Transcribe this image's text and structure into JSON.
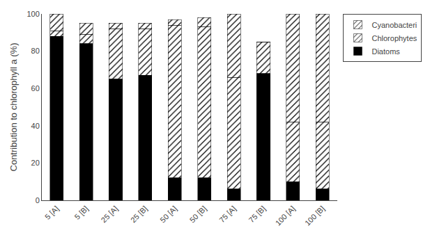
{
  "chart_data": {
    "type": "bar",
    "categories": [
      "5 [A]",
      "5 [B]",
      "25 [A]",
      "25 [B]",
      "50 [A]",
      "50 [B]",
      "75 [A]",
      "75 [B]",
      "100 [A]",
      "100 [B]"
    ],
    "series": [
      {
        "name": "Diatoms",
        "color": "#000000",
        "values": [
          88,
          84,
          65,
          67,
          12,
          12,
          6,
          68,
          10,
          6
        ]
      },
      {
        "name": "Chlorophytes",
        "color": "#d8d8d8",
        "values": [
          3,
          5,
          27,
          25,
          82,
          81,
          60,
          17,
          32,
          36
        ]
      },
      {
        "name": "Cyanobacteri",
        "color": "#888888",
        "values": [
          9,
          6,
          3,
          3,
          3,
          5,
          34,
          0,
          58,
          58
        ]
      }
    ],
    "ylabel": "Contribution to chlorophyll a (%)",
    "ylim": [
      0,
      100
    ],
    "yticks": [
      0,
      20,
      40,
      60,
      80,
      100
    ],
    "stacked": true,
    "grid": false,
    "legend": "right"
  }
}
